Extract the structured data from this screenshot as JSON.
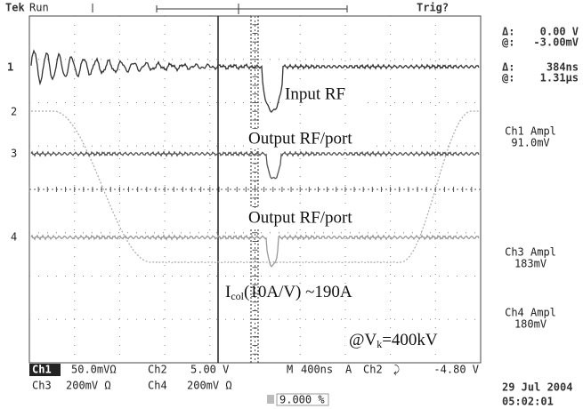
{
  "header": {
    "status_brand": "Tek",
    "status": "Run",
    "trigger": "Trig?"
  },
  "markers": [
    "1",
    "2",
    "3",
    "4"
  ],
  "readouts": [
    {
      "symbol": "Δ:",
      "value": "0.00 V"
    },
    {
      "symbol": "@:",
      "value": "-3.00mV"
    },
    {
      "symbol": "Δ:",
      "value": "384ns"
    },
    {
      "symbol": "@:",
      "value": "1.31µs"
    }
  ],
  "measurements": [
    {
      "label": "Ch1 Ampl",
      "value": "91.0mV"
    },
    {
      "label": "Ch3 Ampl",
      "value": "183mV"
    },
    {
      "label": "Ch4 Ampl",
      "value": "180mV"
    }
  ],
  "annotations": {
    "input": "Input RF",
    "output1": "Output RF/port",
    "output2": "Output RF/port",
    "current": {
      "main": "I",
      "sub": "col",
      "rest": "(10A/V) ~190A"
    },
    "voltage": {
      "main": "@V",
      "sub": "k",
      "rest": "=400kV"
    }
  },
  "footer": {
    "ch1": "Ch1",
    "ch1_scale": "50.0mVΩ",
    "ch2": "Ch2",
    "ch2_scale": "5.00 V",
    "m": "M",
    "timebase": "400ns",
    "a": "A",
    "trig_ch": "Ch2",
    "trig_slope": "⤸",
    "trig_level": "-4.80 V",
    "ch3": "Ch3",
    "ch3_scale": "200mV Ω",
    "ch4": "Ch4",
    "ch4_scale": "200mV Ω",
    "position": "9.000 %",
    "date": "29 Jul  2004",
    "time": "05:02:01"
  }
}
